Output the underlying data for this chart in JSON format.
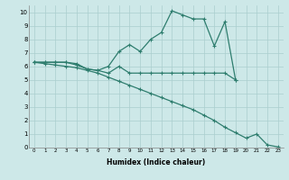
{
  "line1_x": [
    0,
    1,
    2,
    3,
    4,
    5,
    6,
    7,
    8,
    9,
    10,
    11,
    12,
    13,
    14,
    15,
    16,
    17,
    18,
    19
  ],
  "line1_y": [
    6.3,
    6.3,
    6.3,
    6.3,
    6.2,
    5.8,
    5.7,
    6.0,
    7.1,
    7.6,
    7.1,
    8.0,
    8.5,
    10.1,
    9.8,
    9.5,
    9.5,
    7.5,
    9.3,
    5.0
  ],
  "line2_x": [
    0,
    1,
    2,
    3,
    4,
    5,
    6,
    7,
    8,
    9,
    10,
    11,
    12,
    13,
    14,
    15,
    16,
    17,
    18,
    19
  ],
  "line2_y": [
    6.3,
    6.3,
    6.3,
    6.3,
    6.1,
    5.8,
    5.7,
    5.5,
    6.0,
    5.5,
    5.5,
    5.5,
    5.5,
    5.5,
    5.5,
    5.5,
    5.5,
    5.5,
    5.5,
    5.0
  ],
  "line3_x": [
    0,
    1,
    2,
    3,
    4,
    5,
    6,
    7,
    8,
    9,
    10,
    11,
    12,
    13,
    14,
    15,
    16,
    17,
    18,
    19,
    20,
    21,
    22,
    23
  ],
  "line3_y": [
    6.3,
    6.2,
    6.1,
    6.0,
    5.9,
    5.7,
    5.5,
    5.2,
    4.9,
    4.6,
    4.3,
    4.0,
    3.7,
    3.4,
    3.1,
    2.8,
    2.4,
    2.0,
    1.5,
    1.1,
    0.7,
    1.0,
    0.2,
    0.05
  ],
  "line_color": "#2e7d6e",
  "bg_color": "#cde8e8",
  "grid_color": "#aacece",
  "xlabel": "Humidex (Indice chaleur)",
  "xlim": [
    -0.5,
    23.5
  ],
  "ylim": [
    0,
    10.5
  ],
  "xticks": [
    0,
    1,
    2,
    3,
    4,
    5,
    6,
    7,
    8,
    9,
    10,
    11,
    12,
    13,
    14,
    15,
    16,
    17,
    18,
    19,
    20,
    21,
    22,
    23
  ],
  "yticks": [
    0,
    1,
    2,
    3,
    4,
    5,
    6,
    7,
    8,
    9,
    10
  ]
}
